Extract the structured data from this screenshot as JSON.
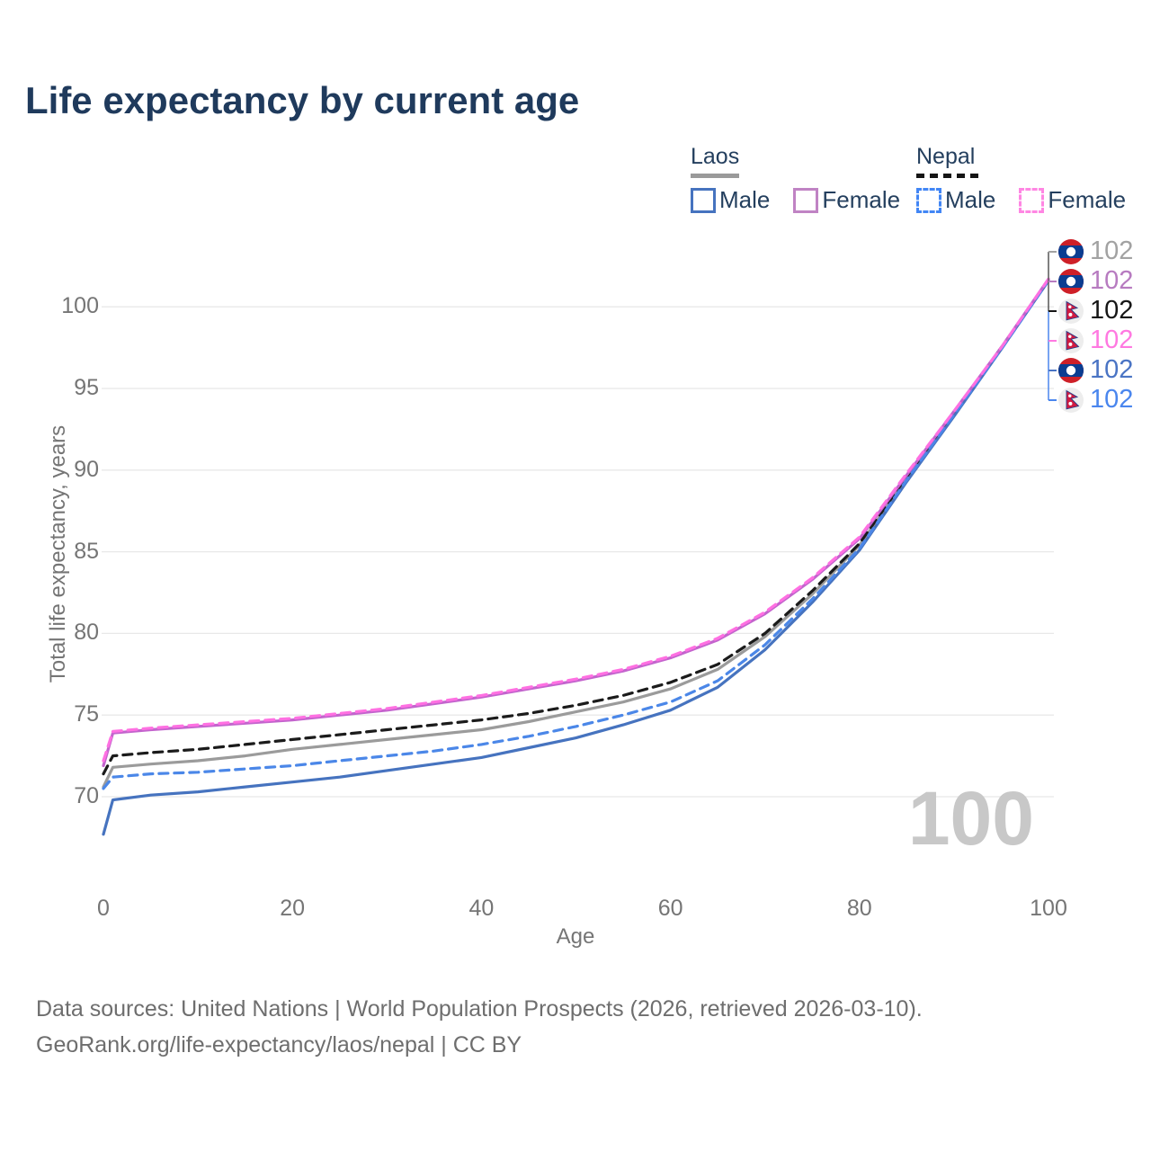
{
  "title": "Life expectancy by current age",
  "legend": {
    "groups": [
      {
        "label": "Laos",
        "underline_style": "solid",
        "underline_color": "#9a9a9a",
        "items": [
          {
            "label": "Male",
            "color": "#4673bf",
            "dashed": false
          },
          {
            "label": "Female",
            "color": "#c083c4",
            "dashed": false
          }
        ]
      },
      {
        "label": "Nepal",
        "underline_style": "dashed",
        "underline_color": "#151515",
        "items": [
          {
            "label": "Male",
            "color": "#4286f5",
            "dashed": true
          },
          {
            "label": "Female",
            "color": "#ff86e3",
            "dashed": true
          }
        ]
      }
    ]
  },
  "chart_data": {
    "type": "line",
    "title": "Life expectancy by current age",
    "xlabel": "Age",
    "ylabel": "Total life expectancy, years",
    "x": [
      0,
      1,
      5,
      10,
      15,
      20,
      25,
      30,
      35,
      40,
      45,
      50,
      55,
      60,
      65,
      70,
      75,
      80,
      85,
      90,
      95,
      100
    ],
    "xlim": [
      0,
      100
    ],
    "ylim": [
      66,
      103
    ],
    "xticks": [
      0,
      20,
      40,
      60,
      80,
      100
    ],
    "yticks": [
      70,
      75,
      80,
      85,
      90,
      95,
      100
    ],
    "grid": "horizontal-only",
    "legend_position": "top-right",
    "series": [
      {
        "id": "laos_total",
        "name": "Laos - Total",
        "country": "laos",
        "color": "#9b9b9b",
        "dashed": false,
        "values": [
          70.6,
          71.8,
          72.0,
          72.2,
          72.5,
          72.9,
          73.2,
          73.5,
          73.8,
          74.1,
          74.6,
          75.2,
          75.8,
          76.6,
          77.8,
          79.8,
          82.4,
          85.4,
          89.5,
          93.4,
          97.5,
          101.6
        ]
      },
      {
        "id": "nepal_total",
        "name": "Nepal - Total",
        "country": "nepal",
        "color": "#1b1b1b",
        "dashed": true,
        "values": [
          71.4,
          72.5,
          72.7,
          72.9,
          73.2,
          73.5,
          73.8,
          74.1,
          74.4,
          74.7,
          75.1,
          75.6,
          76.2,
          77.0,
          78.1,
          80.0,
          82.6,
          85.5,
          89.6,
          93.5,
          97.5,
          101.6
        ]
      },
      {
        "id": "laos_male",
        "name": "Laos - Male",
        "country": "laos",
        "color": "#4673bf",
        "dashed": false,
        "values": [
          67.7,
          69.8,
          70.1,
          70.3,
          70.6,
          70.9,
          71.2,
          71.6,
          72.0,
          72.4,
          73.0,
          73.6,
          74.4,
          75.3,
          76.7,
          79.0,
          81.9,
          85.1,
          89.3,
          93.3,
          97.4,
          101.6
        ]
      },
      {
        "id": "nepal_male",
        "name": "Nepal - Male",
        "country": "nepal",
        "color": "#4b87e8",
        "dashed": true,
        "values": [
          70.5,
          71.2,
          71.4,
          71.5,
          71.7,
          71.9,
          72.2,
          72.5,
          72.8,
          73.2,
          73.7,
          74.3,
          75.0,
          75.8,
          77.1,
          79.3,
          82.1,
          85.2,
          89.4,
          93.4,
          97.4,
          101.6
        ]
      },
      {
        "id": "laos_female",
        "name": "Laos - Female",
        "country": "laos",
        "color": "#c364cd",
        "dashed": false,
        "values": [
          71.9,
          73.9,
          74.1,
          74.3,
          74.5,
          74.7,
          75.0,
          75.3,
          75.7,
          76.1,
          76.6,
          77.1,
          77.7,
          78.5,
          79.6,
          81.2,
          83.3,
          85.8,
          89.7,
          93.6,
          97.5,
          101.7
        ]
      },
      {
        "id": "nepal_female",
        "name": "Nepal - Female",
        "country": "nepal",
        "color": "#ff70e2",
        "dashed": true,
        "values": [
          72.2,
          74.0,
          74.2,
          74.4,
          74.6,
          74.8,
          75.1,
          75.4,
          75.8,
          76.2,
          76.7,
          77.2,
          77.8,
          78.6,
          79.7,
          81.3,
          83.4,
          85.9,
          89.8,
          93.6,
          97.5,
          101.7
        ]
      }
    ],
    "end_labels": [
      {
        "flag": "laos",
        "series": "laos_total",
        "value": "102",
        "color": "#a2a2a2"
      },
      {
        "flag": "laos",
        "series": "laos_female",
        "value": "102",
        "color": "#b77bc0"
      },
      {
        "flag": "nepal",
        "series": "nepal_total",
        "value": "102",
        "color": "#161616"
      },
      {
        "flag": "nepal",
        "series": "nepal_female",
        "value": "102",
        "color": "#ff79e1"
      },
      {
        "flag": "laos",
        "series": "laos_male",
        "value": "102",
        "color": "#4a74c4"
      },
      {
        "flag": "nepal",
        "series": "nepal_male",
        "value": "102",
        "color": "#4a86ee"
      }
    ]
  },
  "watermark": {
    "text": "100"
  },
  "footer": {
    "line1": "Data sources: United Nations | World Population Prospects (2026, retrieved 2026-03-10).",
    "line2": "GeoRank.org/life-expectancy/laos/nepal | CC BY"
  }
}
